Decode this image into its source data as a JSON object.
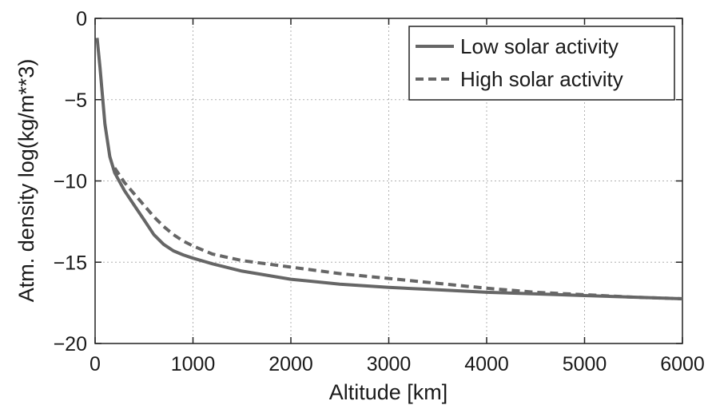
{
  "chart_data": {
    "type": "line",
    "xlabel": "Altitude [km]",
    "ylabel": "Atm. density log(kg/m**3)",
    "xlim": [
      0,
      6000
    ],
    "ylim": [
      -20,
      0
    ],
    "x_ticks": [
      0,
      1000,
      2000,
      3000,
      4000,
      5000,
      6000
    ],
    "y_ticks": [
      0,
      -5,
      -10,
      -15,
      -20
    ],
    "x_tick_labels": [
      "0",
      "1000",
      "2000",
      "3000",
      "4000",
      "5000",
      "6000"
    ],
    "y_tick_labels": [
      "0",
      "−5",
      "−10",
      "−15",
      "−20"
    ],
    "grid": true,
    "legend_position": "top-right",
    "series": [
      {
        "name": "Low solar activity",
        "style": "solid",
        "color": "#666666",
        "points": [
          [
            20,
            -1.2
          ],
          [
            50,
            -3.0
          ],
          [
            100,
            -6.5
          ],
          [
            150,
            -8.5
          ],
          [
            200,
            -9.5
          ],
          [
            300,
            -10.6
          ],
          [
            400,
            -11.5
          ],
          [
            500,
            -12.4
          ],
          [
            600,
            -13.3
          ],
          [
            700,
            -13.9
          ],
          [
            800,
            -14.3
          ],
          [
            900,
            -14.55
          ],
          [
            1000,
            -14.75
          ],
          [
            1200,
            -15.1
          ],
          [
            1500,
            -15.55
          ],
          [
            2000,
            -16.05
          ],
          [
            2500,
            -16.35
          ],
          [
            3000,
            -16.55
          ],
          [
            3500,
            -16.7
          ],
          [
            4000,
            -16.85
          ],
          [
            4500,
            -16.95
          ],
          [
            5000,
            -17.05
          ],
          [
            5500,
            -17.15
          ],
          [
            6000,
            -17.25
          ]
        ]
      },
      {
        "name": "High solar activity",
        "style": "dashed",
        "color": "#666666",
        "points": [
          [
            200,
            -9.2
          ],
          [
            300,
            -10.1
          ],
          [
            400,
            -10.8
          ],
          [
            500,
            -11.5
          ],
          [
            600,
            -12.2
          ],
          [
            700,
            -12.8
          ],
          [
            800,
            -13.3
          ],
          [
            900,
            -13.7
          ],
          [
            1000,
            -14.0
          ],
          [
            1200,
            -14.5
          ],
          [
            1500,
            -14.9
          ],
          [
            2000,
            -15.3
          ],
          [
            2500,
            -15.7
          ],
          [
            3000,
            -16.0
          ],
          [
            3500,
            -16.3
          ],
          [
            4000,
            -16.6
          ],
          [
            4500,
            -16.85
          ],
          [
            5000,
            -17.0
          ],
          [
            5500,
            -17.15
          ],
          [
            6000,
            -17.25
          ]
        ]
      }
    ]
  }
}
